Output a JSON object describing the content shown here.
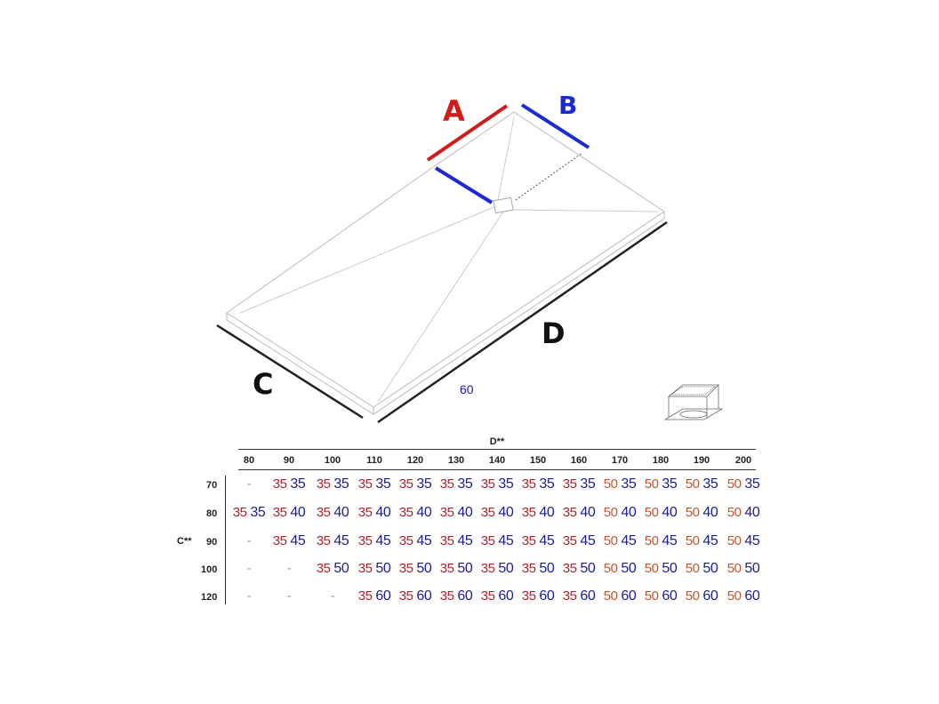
{
  "labels": {
    "A": "A",
    "B": "B",
    "C": "C",
    "D": "D",
    "drain_offset": "60"
  },
  "colors": {
    "A": "#d11a1a",
    "B": "#1a2ad4",
    "red35": "#b3202c",
    "orange50": "#c2552e",
    "blue": "#1c1c96"
  },
  "table": {
    "col_header": "D**",
    "row_header": "C**",
    "columns": [
      "80",
      "90",
      "100",
      "110",
      "120",
      "130",
      "140",
      "150",
      "160",
      "170",
      "180",
      "190",
      "200"
    ],
    "rows": [
      {
        "c": "70",
        "cells": [
          "-",
          "35 35",
          "35 35",
          "35 35",
          "35 35",
          "35 35",
          "35 35",
          "35 35",
          "35 35",
          "50 35",
          "50 35",
          "50 35",
          "50 35"
        ]
      },
      {
        "c": "80",
        "cells": [
          "35 35",
          "35 40",
          "35 40",
          "35 40",
          "35 40",
          "35 40",
          "35 40",
          "35 40",
          "35 40",
          "50 40",
          "50 40",
          "50 40",
          "50 40"
        ]
      },
      {
        "c": "90",
        "cells": [
          "-",
          "35 45",
          "35 45",
          "35 45",
          "35 45",
          "35 45",
          "35 45",
          "35 45",
          "35 45",
          "50 45",
          "50 45",
          "50 45",
          "50 45"
        ]
      },
      {
        "c": "100",
        "cells": [
          "-",
          "-",
          "35 50",
          "35 50",
          "35 50",
          "35 50",
          "35 50",
          "35 50",
          "35 50",
          "50 50",
          "50 50",
          "50 50",
          "50 50"
        ]
      },
      {
        "c": "120",
        "cells": [
          "-",
          "-",
          "-",
          "35 60",
          "35 60",
          "35 60",
          "35 60",
          "35 60",
          "35 60",
          "50 60",
          "50 60",
          "50 60",
          "50 60"
        ]
      }
    ]
  }
}
